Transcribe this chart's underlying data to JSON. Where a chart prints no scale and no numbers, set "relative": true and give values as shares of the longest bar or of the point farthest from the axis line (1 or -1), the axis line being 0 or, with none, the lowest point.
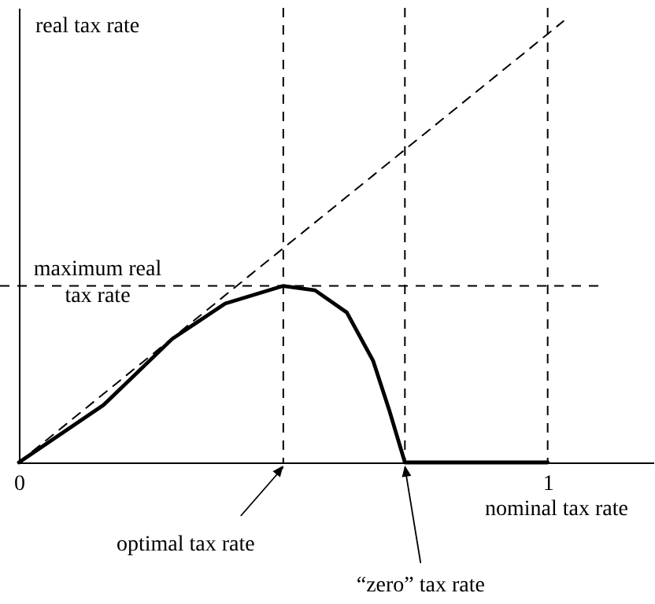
{
  "chart_data": {
    "type": "line",
    "relative": true,
    "xlabel": "nominal tax rate",
    "ylabel": "real tax rate",
    "xlim": [
      0,
      1.2
    ],
    "xticks": [
      0,
      1
    ],
    "grid": false,
    "series": [
      {
        "color": "#000000",
        "line_style": "solid",
        "x": [
          0,
          0.16,
          0.29,
          0.39,
          0.5,
          0.56,
          0.62,
          0.67,
          0.7,
          0.73,
          1
        ],
        "values": [
          0,
          0.13,
          0.28,
          0.36,
          0.4,
          0.39,
          0.34,
          0.23,
          0.12,
          0,
          0
        ]
      },
      {
        "color": "#000000",
        "line_style": "dashed",
        "x": [
          0,
          1.03
        ],
        "values": [
          0,
          1
        ]
      }
    ],
    "ref_lines": [
      {
        "axis": "x",
        "value": 0.5,
        "label": null,
        "line_style": "dashed"
      },
      {
        "axis": "x",
        "value": 0.73,
        "label": null,
        "line_style": "dashed"
      },
      {
        "axis": "x",
        "value": 1,
        "label": null,
        "line_style": "dashed"
      },
      {
        "axis": "y",
        "value": 0.4,
        "label": "maximum real tax rate",
        "line_style": "dashed"
      }
    ],
    "annotations": [
      {
        "text": "optimal tax rate",
        "x": 0.5,
        "y": 0
      },
      {
        "text": "“zero” tax rate",
        "x": 0.73,
        "y": 0
      }
    ]
  }
}
